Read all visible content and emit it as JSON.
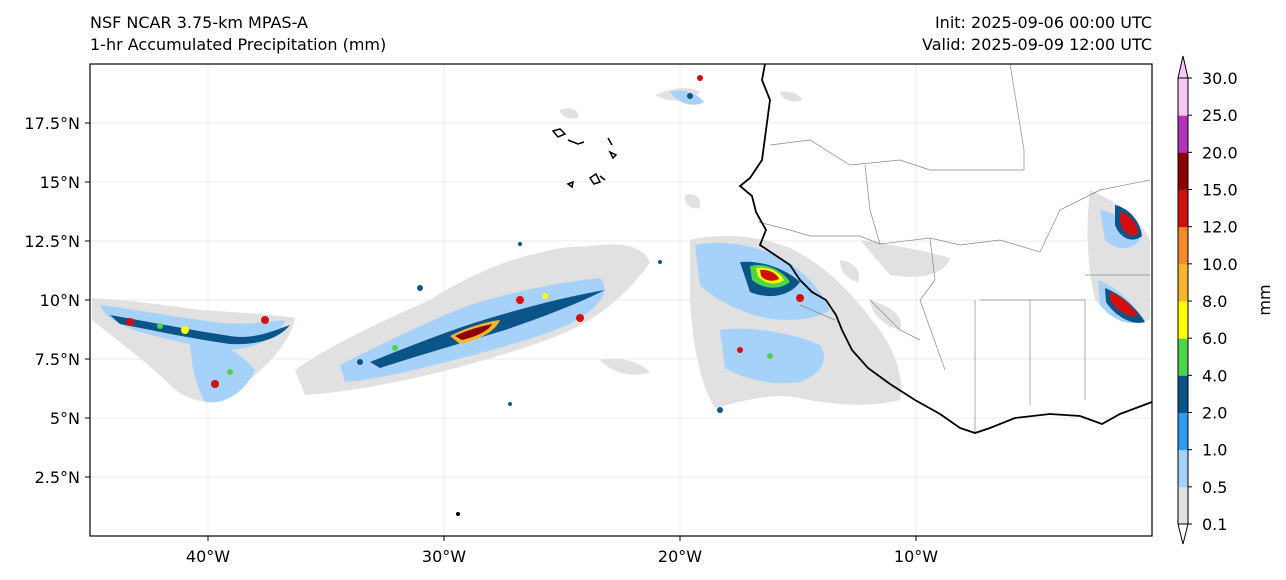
{
  "header": {
    "model_title": "NSF NCAR 3.75-km MPAS-A",
    "field_title": "1-hr Accumulated Precipitation (mm)",
    "init_time": "Init: 2025-09-06 00:00 UTC",
    "valid_time": "Valid: 2025-09-09 12:00 UTC"
  },
  "map": {
    "lon_range": [
      -45,
      0
    ],
    "lat_range": [
      0,
      20
    ],
    "lat_ticks": [
      {
        "value": 2.5,
        "label": "2.5°N"
      },
      {
        "value": 5,
        "label": "5°N"
      },
      {
        "value": 7.5,
        "label": "7.5°N"
      },
      {
        "value": 10,
        "label": "10°N"
      },
      {
        "value": 12.5,
        "label": "12.5°N"
      },
      {
        "value": 15,
        "label": "15°N"
      },
      {
        "value": 17.5,
        "label": "17.5°N"
      }
    ],
    "lon_ticks": [
      {
        "value": -40,
        "label": "40°W"
      },
      {
        "value": -30,
        "label": "30°W"
      },
      {
        "value": -20,
        "label": "20°W"
      },
      {
        "value": -10,
        "label": "10°W"
      }
    ],
    "grid": true
  },
  "colorbar": {
    "unit_label": "mm",
    "levels": [
      "0.1",
      "0.5",
      "1.0",
      "2.0",
      "4.0",
      "6.0",
      "8.0",
      "10.0",
      "12.0",
      "15.0",
      "20.0",
      "25.0",
      "30.0"
    ],
    "colors": [
      "#e1e1e1",
      "#a6d2f9",
      "#2f9bf0",
      "#0b5488",
      "#4cd44c",
      "#ffff00",
      "#f6b72f",
      "#f28a2a",
      "#d20f0f",
      "#8b0000",
      "#b233b8",
      "#f6c6f6"
    ]
  }
}
